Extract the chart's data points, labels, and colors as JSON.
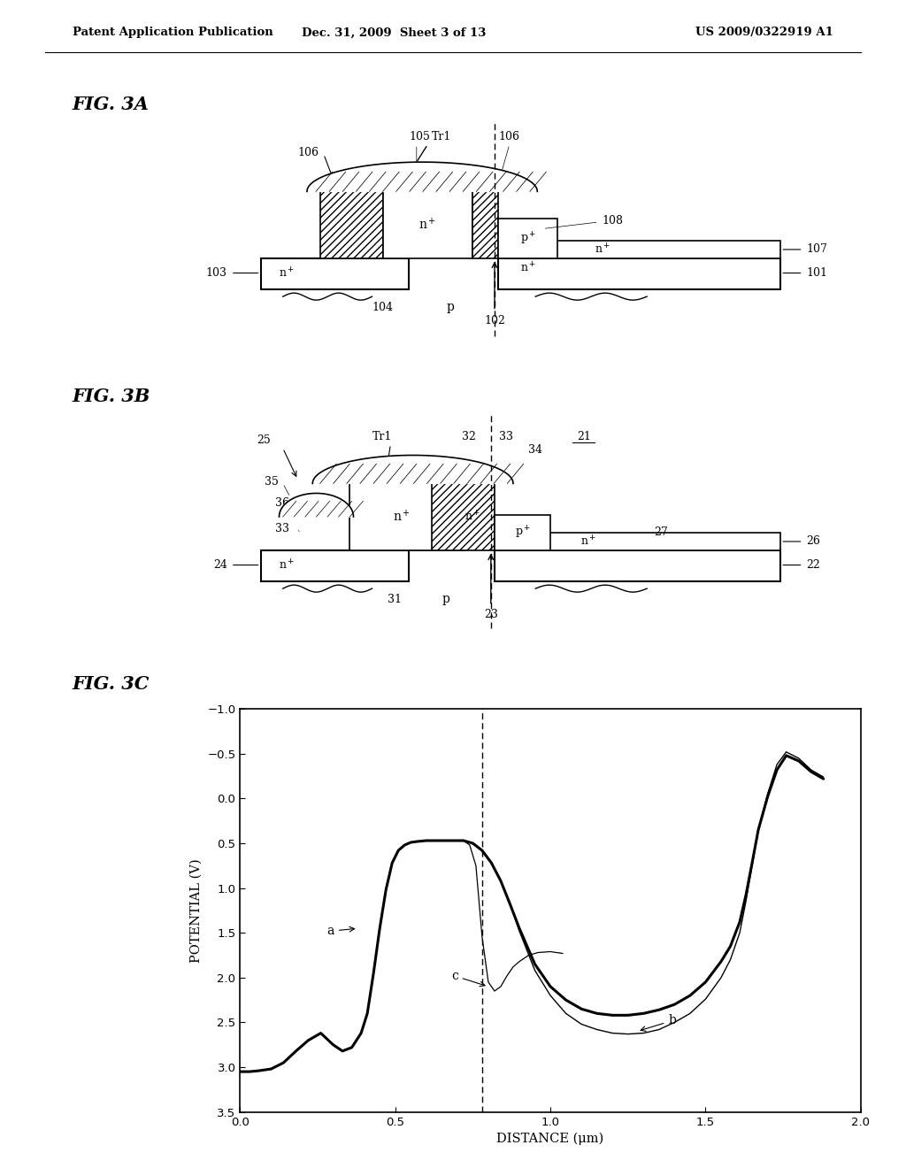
{
  "header_left": "Patent Application Publication",
  "header_mid": "Dec. 31, 2009  Sheet 3 of 13",
  "header_right": "US 2009/0322919 A1",
  "fig3a_label": "FIG. 3A",
  "fig3b_label": "FIG. 3B",
  "fig3c_label": "FIG. 3C",
  "graph_xlabel": "DISTANCE (μm)",
  "graph_ylabel": "POTENTIAL (V)",
  "graph_xlim": [
    0,
    2
  ],
  "graph_ylim": [
    3.5,
    -1.0
  ],
  "graph_yticks": [
    -1.0,
    -0.5,
    0.0,
    0.5,
    1.0,
    1.5,
    2.0,
    2.5,
    3.0,
    3.5
  ],
  "graph_xticks": [
    0,
    0.5,
    1,
    1.5,
    2
  ],
  "dashed_line_x": 0.78,
  "bg_color": "#ffffff"
}
